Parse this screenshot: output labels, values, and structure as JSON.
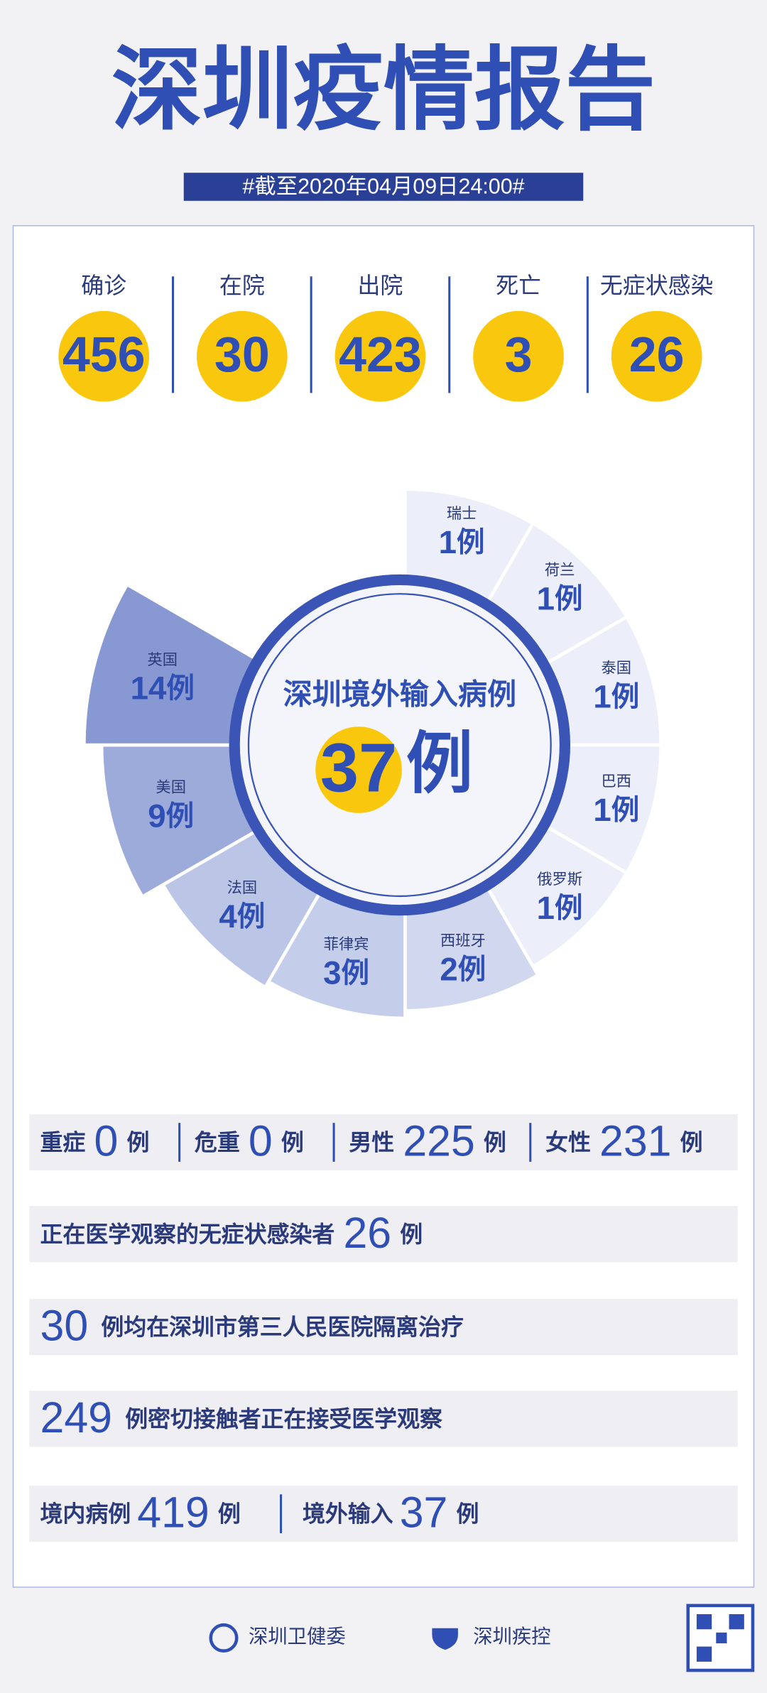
{
  "header": {
    "title": "深圳疫情报告",
    "date": "#截至2020年04月09日24:00#"
  },
  "summary": [
    {
      "label": "确诊",
      "value": 456
    },
    {
      "label": "在院",
      "value": 30
    },
    {
      "label": "出院",
      "value": 423
    },
    {
      "label": "死亡",
      "value": 3
    },
    {
      "label": "无症状感染",
      "value": 26
    }
  ],
  "imported": {
    "title": "深圳境外输入病例",
    "total": 37,
    "unit": "例",
    "countries": [
      {
        "name": "瑞士",
        "value": 1
      },
      {
        "name": "荷兰",
        "value": 1
      },
      {
        "name": "泰国",
        "value": 1
      },
      {
        "name": "巴西",
        "value": 1
      },
      {
        "name": "俄罗斯",
        "value": 1
      },
      {
        "name": "西班牙",
        "value": 2
      },
      {
        "name": "菲律宾",
        "value": 3
      },
      {
        "name": "法国",
        "value": 4
      },
      {
        "name": "美国",
        "value": 9
      },
      {
        "name": "英国",
        "value": 14
      }
    ]
  },
  "details": {
    "unit": "例",
    "severity": [
      {
        "label": "重症",
        "value": 0
      },
      {
        "label": "危重",
        "value": 0
      },
      {
        "label": "男性",
        "value": 225
      },
      {
        "label": "女性",
        "value": 231
      }
    ],
    "asymptomatic": {
      "label": "正在医学观察的无症状感染者",
      "value": 26
    },
    "hospital": {
      "value": 30,
      "text": "例均在深圳市第三人民医院隔离治疗"
    },
    "contacts": {
      "value": 249,
      "text": "例密切接触者正在接受医学观察"
    },
    "origin": [
      {
        "label": "境内病例",
        "value": 419
      },
      {
        "label": "境外输入",
        "value": 37
      }
    ]
  },
  "footer": {
    "sources": [
      "深圳卫健委",
      "深圳疾控"
    ]
  }
}
